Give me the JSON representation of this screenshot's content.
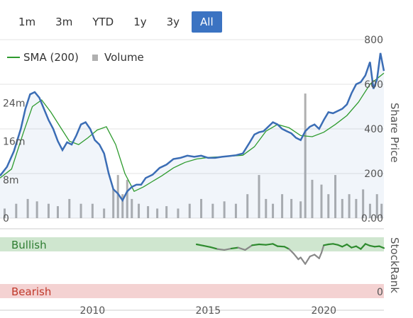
{
  "range_buttons": [
    {
      "label": "1m",
      "active": false
    },
    {
      "label": "3m",
      "active": false
    },
    {
      "label": "YTD",
      "active": false
    },
    {
      "label": "1y",
      "active": false
    },
    {
      "label": "3y",
      "active": false
    },
    {
      "label": "All",
      "active": true
    }
  ],
  "colors": {
    "price": "#3b6db5",
    "sma": "#2e9b2e",
    "volume": "#b0b0b0",
    "bullish_band": "#cfe6cf",
    "bearish_band": "#f4d2d2",
    "bullish_text": "#2e7d32",
    "bearish_text": "#c0392b",
    "active_button": "#3b73c2",
    "stockrank_bull": "#2e8b2e",
    "stockrank_neutral": "#888888"
  },
  "chart_data": [
    {
      "type": "line",
      "legend": [
        {
          "label": "SMA (200)",
          "kind": "line"
        },
        {
          "label": "Volume",
          "kind": "square"
        }
      ],
      "x_ticks": [
        "2010",
        "2015",
        "2020"
      ],
      "x_range": [
        2006.0,
        2022.6
      ],
      "y_price_label": "Share Price",
      "y_price_ticks": [
        "800",
        "600",
        "400",
        "200",
        "0.00"
      ],
      "y_price_range": [
        0,
        800
      ],
      "y_volume_ticks": [
        "24m",
        "16m",
        "8m",
        "0"
      ],
      "y_volume_range": [
        0,
        30000000
      ],
      "series": [
        {
          "name": "",
          "x": [
            2006.0,
            2006.3,
            2006.6,
            2006.9,
            2007.1,
            2007.3,
            2007.5,
            2007.7,
            2007.9,
            2008.1,
            2008.3,
            2008.5,
            2008.7,
            2008.9,
            2009.1,
            2009.3,
            2009.5,
            2009.7,
            2009.9,
            2010.1,
            2010.3,
            2010.5,
            2010.7,
            2010.9,
            2011.1,
            2011.3,
            2011.5,
            2011.7,
            2011.9,
            2012.1,
            2012.3,
            2012.6,
            2012.9,
            2013.2,
            2013.5,
            2013.8,
            2014.1,
            2014.4,
            2014.7,
            2015.0,
            2015.3,
            2015.6,
            2015.9,
            2016.2,
            2016.5,
            2016.8,
            2017.0,
            2017.2,
            2017.4,
            2017.6,
            2017.8,
            2018.0,
            2018.2,
            2018.4,
            2018.6,
            2018.8,
            2019.0,
            2019.2,
            2019.4,
            2019.6,
            2019.8,
            2020.0,
            2020.2,
            2020.4,
            2020.6,
            2020.8,
            2021.0,
            2021.2,
            2021.4,
            2021.6,
            2021.8,
            2022.0,
            2022.15,
            2022.3,
            2022.45,
            2022.6
          ],
          "y": [
            190,
            230,
            300,
            400,
            490,
            555,
            565,
            540,
            490,
            440,
            400,
            345,
            305,
            340,
            330,
            370,
            420,
            430,
            400,
            350,
            330,
            290,
            200,
            130,
            110,
            80,
            120,
            140,
            150,
            150,
            180,
            195,
            225,
            240,
            265,
            270,
            280,
            275,
            280,
            270,
            270,
            275,
            278,
            282,
            290,
            340,
            375,
            385,
            390,
            410,
            430,
            420,
            400,
            390,
            380,
            360,
            350,
            390,
            410,
            420,
            400,
            440,
            475,
            470,
            480,
            490,
            510,
            560,
            600,
            610,
            640,
            700,
            580,
            620,
            740,
            660
          ]
        },
        {
          "name": "SMA (200)",
          "x": [
            2006.0,
            2006.5,
            2007.0,
            2007.4,
            2007.8,
            2008.2,
            2008.6,
            2009.0,
            2009.4,
            2009.8,
            2010.2,
            2010.6,
            2011.0,
            2011.4,
            2011.8,
            2012.2,
            2012.6,
            2013.0,
            2013.5,
            2014.0,
            2014.5,
            2015.0,
            2015.5,
            2016.0,
            2016.5,
            2017.0,
            2017.5,
            2018.0,
            2018.5,
            2019.0,
            2019.5,
            2020.0,
            2020.5,
            2021.0,
            2021.5,
            2022.0,
            2022.6
          ],
          "y": [
            180,
            220,
            380,
            500,
            530,
            475,
            410,
            345,
            330,
            360,
            395,
            410,
            330,
            200,
            120,
            140,
            165,
            190,
            225,
            250,
            265,
            272,
            275,
            278,
            282,
            320,
            390,
            420,
            405,
            370,
            365,
            385,
            420,
            460,
            520,
            600,
            650
          ]
        },
        {
          "name": "Volume",
          "x": [
            2006.2,
            2006.7,
            2007.2,
            2007.6,
            2008.1,
            2008.5,
            2009.0,
            2009.5,
            2010.0,
            2010.5,
            2010.9,
            2011.1,
            2011.3,
            2011.5,
            2011.7,
            2012.0,
            2012.4,
            2012.8,
            2013.2,
            2013.7,
            2014.2,
            2014.7,
            2015.2,
            2015.7,
            2016.2,
            2016.7,
            2017.2,
            2017.5,
            2017.8,
            2018.2,
            2018.6,
            2019.0,
            2019.2,
            2019.5,
            2019.9,
            2020.2,
            2020.5,
            2020.8,
            2021.1,
            2021.4,
            2021.7,
            2022.0,
            2022.3,
            2022.5
          ],
          "y": [
            2000000,
            3000000,
            4000000,
            3500000,
            3000000,
            2500000,
            4000000,
            3000000,
            3000000,
            2000000,
            6000000,
            9000000,
            5000000,
            8000000,
            4000000,
            3000000,
            2500000,
            2000000,
            2500000,
            2000000,
            3000000,
            4000000,
            3000000,
            3500000,
            3000000,
            5000000,
            9000000,
            4000000,
            3000000,
            5000000,
            4000000,
            3500000,
            26000000,
            8000000,
            7000000,
            5000000,
            9000000,
            4000000,
            5000000,
            4000000,
            6000000,
            3000000,
            5000000,
            3000000
          ]
        }
      ]
    },
    {
      "type": "line",
      "y_label": "StockRank",
      "band_labels": [
        "Bullish",
        "Bearish"
      ],
      "y_ticks": [
        "0"
      ],
      "y_range": [
        0,
        100
      ],
      "series": [
        {
          "name": "StockRank",
          "x": [
            2014.5,
            2014.8,
            2015.1,
            2015.4,
            2015.7,
            2016.0,
            2016.3,
            2016.6,
            2016.9,
            2017.2,
            2017.5,
            2017.8,
            2018.0,
            2018.3,
            2018.5,
            2018.7,
            2018.9,
            2019.0,
            2019.2,
            2019.4,
            2019.6,
            2019.8,
            2019.9,
            2020.0,
            2020.2,
            2020.4,
            2020.6,
            2020.8,
            2021.0,
            2021.2,
            2021.4,
            2021.6,
            2021.8,
            2022.0,
            2022.2,
            2022.4,
            2022.6
          ],
          "y": [
            100,
            97,
            94,
            90,
            88,
            91,
            93,
            88,
            98,
            100,
            99,
            101,
            96,
            95,
            90,
            80,
            68,
            72,
            58,
            74,
            78,
            70,
            82,
            98,
            100,
            101,
            99,
            95,
            100,
            93,
            96,
            90,
            101,
            97,
            95,
            96,
            92
          ]
        }
      ]
    }
  ]
}
